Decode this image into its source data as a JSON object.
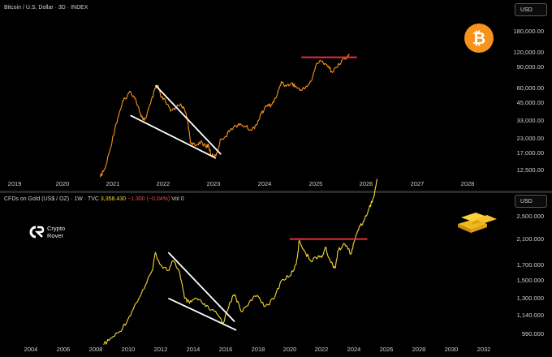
{
  "top_panel": {
    "title": "Bitcoin / U.S. Dollar · 3D · INDEX",
    "currency": "USD",
    "y_ticks": [
      "180,000.00",
      "120,000.00",
      "90,000.00",
      "60,000.00",
      "45,000.00",
      "33,000.00",
      "23,000.00",
      "17,000.00",
      "12,500.00"
    ],
    "x_ticks": [
      "2019",
      "2020",
      "2021",
      "2022",
      "2023",
      "2024",
      "2025",
      "2026",
      "2027",
      "2028"
    ],
    "icon": "bitcoin-logo-icon"
  },
  "bottom_panel": {
    "title_main": "CFDs on Gold (US$ / OZ) · 1W · TVC",
    "price": "3,358.430",
    "change": "−1.300 (−0.04%)",
    "vol": "Vol 0",
    "currency": "USD",
    "y_ticks": [
      "2,500.000",
      "2,100.000",
      "1,700.000",
      "1,500.000",
      "1,300.000",
      "1,140.000",
      "990.000"
    ],
    "x_ticks": [
      "2004",
      "2006",
      "2008",
      "2010",
      "2012",
      "2014",
      "2016",
      "2018",
      "2020",
      "2022",
      "2024",
      "2026",
      "2028",
      "2030",
      "2032"
    ],
    "icon": "gold-bars-icon"
  },
  "branding": {
    "name_line1": "Crypto",
    "name_line2": "Rover"
  },
  "colors": {
    "bitcoin_line": "#f7931a",
    "gold_line": "#f5d835",
    "resistance": "#e0323a",
    "wedge": "#ffffff"
  },
  "chart_data": [
    {
      "type": "line",
      "title": "Bitcoin / U.S. Dollar · 3D · INDEX",
      "y_scale": "log",
      "ylim": [
        10000,
        200000
      ],
      "xlim": [
        2019.0,
        2028.5
      ],
      "series": [
        {
          "x": [
            2020.7,
            2020.8,
            2020.9,
            2021.0,
            2021.1,
            2021.15,
            2021.2,
            2021.3,
            2021.4,
            2021.5,
            2021.55,
            2021.6,
            2021.7,
            2021.8,
            2021.85,
            2021.9,
            2022.0,
            2022.1,
            2022.2,
            2022.3,
            2022.4,
            2022.45,
            2022.5,
            2022.6,
            2022.7,
            2022.8,
            2022.85,
            2022.9,
            2023.0,
            2023.1,
            2023.2,
            2023.3,
            2023.4,
            2023.5,
            2023.6,
            2023.7,
            2023.8,
            2023.9,
            2024.0,
            2024.1,
            2024.2,
            2024.3,
            2024.4,
            2024.5,
            2024.6,
            2024.7,
            2024.8,
            2024.9,
            2025.0,
            2025.1,
            2025.2,
            2025.3,
            2025.4,
            2025.5,
            2025.6,
            2025.65
          ],
          "y": [
            11000,
            13000,
            19000,
            29000,
            40000,
            47000,
            50000,
            57000,
            50000,
            37000,
            33000,
            34000,
            45000,
            61000,
            64000,
            52000,
            47000,
            39000,
            42000,
            45000,
            38000,
            30000,
            21000,
            20000,
            22000,
            19500,
            20500,
            16800,
            16500,
            23000,
            24000,
            28000,
            29500,
            30000,
            29000,
            27000,
            30000,
            37000,
            43000,
            44000,
            51000,
            69000,
            63000,
            67000,
            62000,
            58000,
            63000,
            70000,
            98000,
            102000,
            96000,
            84000,
            90000,
            104000,
            108000,
            117000
          ]
        }
      ],
      "annotations": [
        "resistance line ~110000 from 2024.9 to 2025.8",
        "falling wedge 2021.3–2022.95"
      ]
    },
    {
      "type": "line",
      "title": "CFDs on Gold (US$ / OZ) · 1W · TVC",
      "y_scale": "log",
      "ylim": [
        950,
        2900
      ],
      "xlim": [
        2002.0,
        2033.5
      ],
      "series": [
        {
          "x": [
            2008.5,
            2009.0,
            2009.5,
            2010.0,
            2010.5,
            2011.0,
            2011.5,
            2011.7,
            2012.0,
            2012.5,
            2012.8,
            2013.2,
            2013.5,
            2013.8,
            2014.2,
            2014.6,
            2015.0,
            2015.5,
            2015.9,
            2016.3,
            2016.6,
            2017.0,
            2017.5,
            2018.0,
            2018.5,
            2019.0,
            2019.5,
            2020.0,
            2020.4,
            2020.6,
            2021.0,
            2021.3,
            2021.6,
            2022.0,
            2022.2,
            2022.5,
            2022.8,
            2023.0,
            2023.4,
            2023.8,
            2024.0,
            2024.3,
            2024.6,
            2024.9,
            2025.2,
            2025.4
          ],
          "y": [
            900,
            950,
            1000,
            1100,
            1250,
            1400,
            1620,
            1870,
            1700,
            1620,
            1750,
            1600,
            1300,
            1250,
            1300,
            1250,
            1200,
            1150,
            1070,
            1260,
            1340,
            1170,
            1260,
            1330,
            1220,
            1290,
            1500,
            1550,
            1700,
            2060,
            1850,
            1750,
            1800,
            1800,
            1950,
            1750,
            1650,
            1900,
            2000,
            1850,
            2050,
            2300,
            2400,
            2650,
            2900,
            3350
          ]
        }
      ],
      "annotations": [
        "resistance line ~2080 from 2020.0 to 2024.8",
        "falling wedge 2012.5–2016.7"
      ]
    }
  ]
}
